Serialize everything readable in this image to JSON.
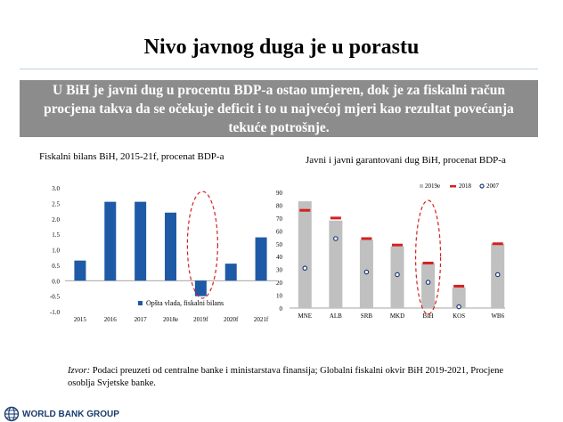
{
  "title": "Nivo javnog duga je u porastu",
  "banner": "U BiH je javni dug u procentu BDP-a ostao umjeren, dok je za fiskalni račun procjena takva da se očekuje deficit i to u najvećoj mjeri kao rezultat povećanja tekuće potrošnje.",
  "colors": {
    "bar_blue": "#1f5aa6",
    "bar_gray": "#c0c0c0",
    "marker_red": "#d62020",
    "ellipse_red": "#d62020",
    "banner_bg": "#8c8c8c"
  },
  "chart_data": [
    {
      "type": "bar",
      "title": "Fiskalni bilans BiH, 2015-21f, procenat BDP-a",
      "categories": [
        "2015",
        "2016",
        "2017",
        "2018e",
        "2019f",
        "2020f",
        "2021f"
      ],
      "series": [
        {
          "name": "Opšta vlada, fiskalni bilans",
          "values": [
            0.65,
            2.55,
            2.55,
            2.2,
            -0.5,
            0.55,
            1.4
          ]
        }
      ],
      "ylim": [
        -1.0,
        3.0
      ],
      "yticks": [
        "3.0",
        "2.5",
        "2.0",
        "1.5",
        "1.0",
        "0.5",
        "0.0",
        "-0.5",
        "-1.0"
      ],
      "highlight": "2019f",
      "legend": "Opšta vlada, fiskalni bilans"
    },
    {
      "type": "bar",
      "title": "Javni i javni garantovani dug BiH, procenat BDP-a",
      "categories": [
        "MNE",
        "ALB",
        "SRB",
        "MKD",
        "BIH",
        "KOS",
        "WB6"
      ],
      "series": [
        {
          "name": "2019e",
          "values": [
            83,
            68,
            53,
            48,
            35,
            16,
            50
          ]
        },
        {
          "name": "2018",
          "values": [
            76,
            70,
            54,
            49,
            35,
            17,
            50
          ]
        },
        {
          "name": "2007",
          "values": [
            31,
            54,
            28,
            26,
            20,
            1,
            26
          ]
        }
      ],
      "ylim": [
        0,
        90
      ],
      "yticks": [
        "90",
        "80",
        "70",
        "60",
        "50",
        "40",
        "30",
        "20",
        "10",
        "0"
      ],
      "highlight": "BIH",
      "legend": [
        "2019e",
        "2018",
        "2007"
      ]
    }
  ],
  "source": {
    "label": "Izvor:",
    "text": " Podaci preuzeti od centralne banke i ministarstava finansija; Globalni fiskalni okvir BiH 2019-2021, Procjene osoblja Svjetske banke."
  },
  "logo": {
    "text": "WORLD BANK GROUP",
    "icon": "globe-icon"
  }
}
